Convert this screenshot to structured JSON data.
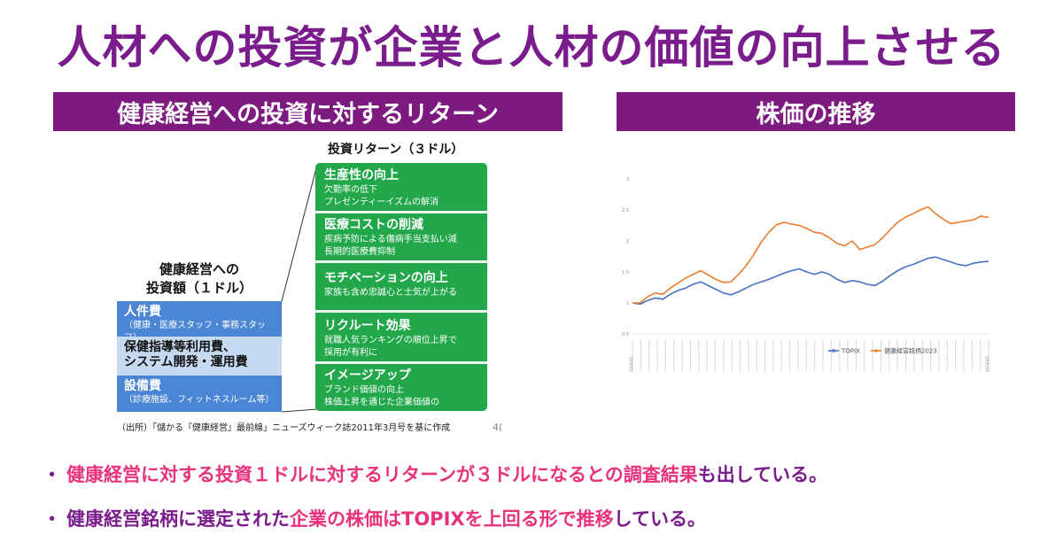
{
  "title": "人材への投資が企業と人材の価値の向上させる",
  "left_section": {
    "header": "健康経営への投資に対するリターン",
    "returns_title": "投資リターン（３ドル）",
    "invest_title_line1": "健康経営への",
    "invest_title_line2": "投資額（１ドル）",
    "invest_items": [
      {
        "name": "人件費",
        "desc": "（健康・医療スタッフ・事務スタッフ）"
      },
      {
        "name": "保健指導等利用費、",
        "desc": "システム開発・運用費"
      },
      {
        "name": "設備費",
        "desc": "（診療施設、フィットネスルーム等）"
      }
    ],
    "return_items": [
      {
        "name": "生産性の向上",
        "desc1": "欠勤率の低下",
        "desc2": "プレゼンティーイズムの解消"
      },
      {
        "name": "医療コストの削減",
        "desc1": "疾病予防による傷病手当支払い減",
        "desc2": "長期的医療費抑制"
      },
      {
        "name": "モチベーションの向上",
        "desc1": "家族も含め忠誠心と士気が上がる",
        "desc2": ""
      },
      {
        "name": "リクルート効果",
        "desc1": "就職人気ランキングの順位上昇で",
        "desc2": "採用が有利に"
      },
      {
        "name": "イメージアップ",
        "desc1": "ブランド価値の向上",
        "desc2": "株価上昇を通じた企業価値の"
      }
    ],
    "source": "（出所）「儲かる『健康経営』最前線」ニューズウィーク誌2011年3月号を基に作成",
    "page_number": "4("
  },
  "right_section": {
    "header": "株価の推移"
  },
  "chart_data": {
    "type": "line",
    "ylim": [
      0.5,
      3
    ],
    "yticks": [
      "0.5",
      "1",
      "1.5",
      "2",
      "2.5",
      "3"
    ],
    "legend_position": "bottom-right",
    "grid": false,
    "x_start": "2014/4/1",
    "x_end": "2023/4/1",
    "series": [
      {
        "name": "TOPIX",
        "color": "#4472c4",
        "values": [
          1.0,
          0.98,
          1.04,
          1.08,
          1.06,
          1.14,
          1.2,
          1.24,
          1.3,
          1.34,
          1.28,
          1.22,
          1.16,
          1.13,
          1.18,
          1.24,
          1.3,
          1.34,
          1.38,
          1.43,
          1.48,
          1.52,
          1.55,
          1.5,
          1.46,
          1.5,
          1.46,
          1.38,
          1.33,
          1.36,
          1.34,
          1.3,
          1.28,
          1.35,
          1.44,
          1.52,
          1.58,
          1.62,
          1.67,
          1.72,
          1.74,
          1.7,
          1.66,
          1.62,
          1.6,
          1.64,
          1.66,
          1.67
        ]
      },
      {
        "name": "健康経営銘柄2023",
        "color": "#ed7d31",
        "values": [
          1.0,
          1.0,
          1.1,
          1.16,
          1.14,
          1.24,
          1.32,
          1.4,
          1.46,
          1.52,
          1.45,
          1.38,
          1.33,
          1.34,
          1.46,
          1.6,
          1.78,
          1.98,
          2.14,
          2.26,
          2.3,
          2.27,
          2.25,
          2.2,
          2.14,
          2.12,
          2.05,
          1.96,
          1.92,
          2.0,
          1.86,
          1.9,
          1.94,
          2.05,
          2.18,
          2.3,
          2.38,
          2.44,
          2.5,
          2.55,
          2.44,
          2.35,
          2.28,
          2.3,
          2.32,
          2.34,
          2.4,
          2.38
        ]
      }
    ]
  },
  "bullets": [
    {
      "pink": "健康経営に対する投資１ドルに対するリターンが３ドルになるとの調査結果",
      "purple": "も出している。"
    },
    {
      "purple1": "健康経営銘柄に選定された",
      "pink": "企業の株価はTOPIXを上回る形で推移",
      "purple2": "している。"
    }
  ]
}
